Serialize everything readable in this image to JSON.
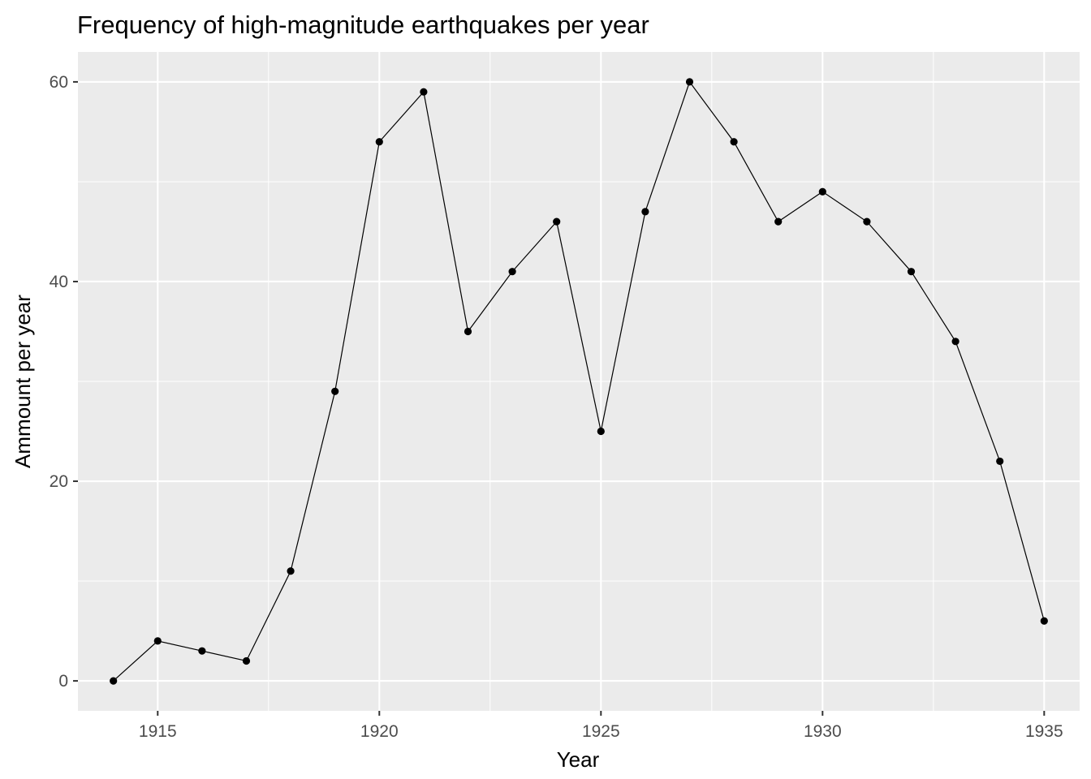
{
  "chart_data": {
    "type": "line",
    "title": "Frequency of high-magnitude earthquakes per year",
    "xlabel": "Year",
    "ylabel": "Ammount per year",
    "xlim": [
      1913.2,
      1935.8
    ],
    "ylim": [
      -3,
      63
    ],
    "x_ticks": [
      1915,
      1920,
      1925,
      1930,
      1935
    ],
    "x_tick_labels": [
      "1915",
      "1920",
      "1925",
      "1930",
      "1935"
    ],
    "y_ticks": [
      0,
      20,
      40,
      60
    ],
    "y_tick_labels": [
      "0",
      "20",
      "40",
      "60"
    ],
    "grid": true,
    "legend": "none",
    "series": [
      {
        "x": [
          1914,
          1915,
          1916,
          1917,
          1918,
          1919,
          1920,
          1921,
          1922,
          1923,
          1924,
          1925,
          1926,
          1927,
          1928,
          1929,
          1930,
          1931,
          1932,
          1933,
          1934,
          1935
        ],
        "values": [
          0,
          4,
          3,
          2,
          11,
          29,
          54,
          59,
          35,
          41,
          46,
          25,
          47,
          60,
          54,
          46,
          49,
          46,
          41,
          34,
          22,
          6
        ],
        "color": "#000000"
      }
    ]
  }
}
